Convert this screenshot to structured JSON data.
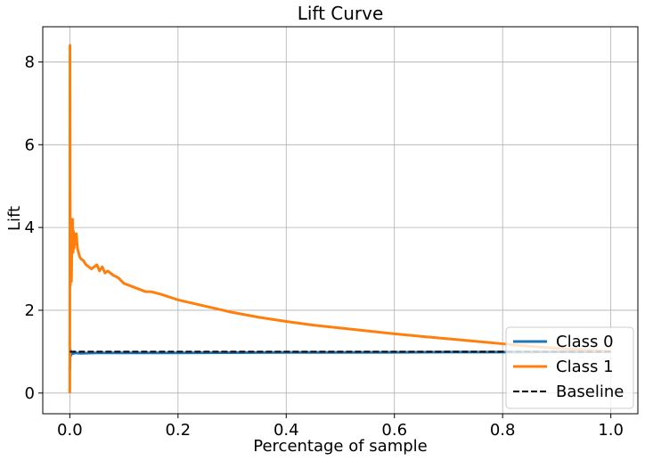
{
  "chart_data": {
    "type": "line",
    "title": "Lift Curve",
    "xlabel": "Percentage of sample",
    "ylabel": "Lift",
    "xlim": [
      -0.05,
      1.05
    ],
    "ylim": [
      -0.5,
      8.85
    ],
    "xticks": [
      0.0,
      0.2,
      0.4,
      0.6,
      0.8,
      1.0
    ],
    "xtick_labels": [
      "0.0",
      "0.2",
      "0.4",
      "0.6",
      "0.8",
      "1.0"
    ],
    "yticks": [
      0,
      2,
      4,
      6,
      8
    ],
    "ytick_labels": [
      "0",
      "2",
      "4",
      "6",
      "8"
    ],
    "grid": true,
    "legend": {
      "position": "lower-right",
      "entries": [
        {
          "label": "Class 0",
          "color": "#1f77b4",
          "style": "solid"
        },
        {
          "label": "Class 1",
          "color": "#ff7f0e",
          "style": "solid"
        },
        {
          "label": "Baseline",
          "color": "#000000",
          "style": "dashed"
        }
      ]
    },
    "series": [
      {
        "name": "Class 0",
        "color": "#1f77b4",
        "x": [
          0.0,
          0.0008,
          0.0015,
          0.003,
          0.005,
          0.01,
          0.02,
          0.05,
          0.1,
          0.2,
          0.3,
          0.4,
          0.5,
          0.6,
          0.7,
          0.8,
          0.9,
          1.0
        ],
        "y": [
          0.55,
          1.05,
          0.9,
          0.97,
          0.95,
          0.97,
          0.96,
          0.97,
          0.97,
          0.97,
          0.975,
          0.98,
          0.98,
          0.985,
          0.99,
          0.99,
          0.995,
          1.0
        ]
      },
      {
        "name": "Class 1",
        "color": "#ff7f0e",
        "x": [
          0.0,
          0.0003,
          0.0006,
          0.001,
          0.0015,
          0.002,
          0.0025,
          0.003,
          0.004,
          0.005,
          0.006,
          0.007,
          0.008,
          0.009,
          0.01,
          0.012,
          0.014,
          0.016,
          0.018,
          0.02,
          0.025,
          0.03,
          0.035,
          0.04,
          0.05,
          0.055,
          0.06,
          0.065,
          0.07,
          0.08,
          0.09,
          0.1,
          0.12,
          0.14,
          0.15,
          0.17,
          0.2,
          0.25,
          0.3,
          0.35,
          0.4,
          0.45,
          0.5,
          0.55,
          0.6,
          0.65,
          0.7,
          0.75,
          0.8,
          0.85,
          0.9,
          0.95,
          1.0
        ],
        "y": [
          0.0,
          8.4,
          5.0,
          2.6,
          3.6,
          3.0,
          3.9,
          2.7,
          3.7,
          4.2,
          3.4,
          3.9,
          3.5,
          3.8,
          3.6,
          3.85,
          3.5,
          3.4,
          3.3,
          3.25,
          3.2,
          3.1,
          3.05,
          3.0,
          3.1,
          2.95,
          3.05,
          2.9,
          2.95,
          2.85,
          2.78,
          2.65,
          2.55,
          2.45,
          2.45,
          2.38,
          2.25,
          2.1,
          1.95,
          1.83,
          1.73,
          1.64,
          1.57,
          1.5,
          1.43,
          1.37,
          1.31,
          1.25,
          1.19,
          1.13,
          1.08,
          1.04,
          1.0
        ]
      },
      {
        "name": "Baseline",
        "color": "#000000",
        "x": [
          0.0,
          1.0
        ],
        "y": [
          1.0,
          1.0
        ]
      }
    ]
  }
}
